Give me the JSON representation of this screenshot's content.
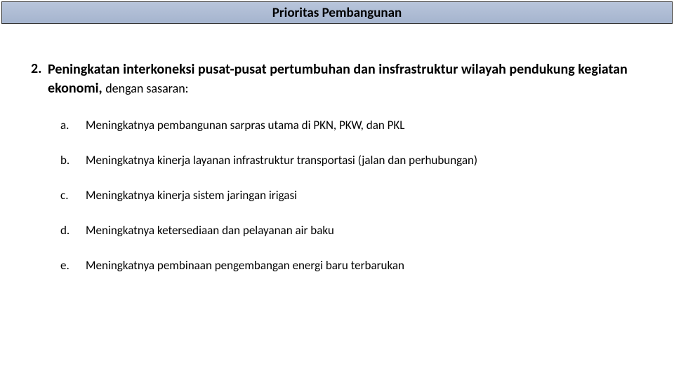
{
  "title": "Prioritas Pembangunan",
  "main": {
    "number": "2.",
    "text_bold": "Peningkatan interkoneksi pusat-pusat pertumbuhan dan insfrastruktur wilayah pendukung kegiatan ekonomi, ",
    "text_normal": "dengan sasaran:"
  },
  "subitems": [
    {
      "letter": "a.",
      "text": "Meningkatnya pembangunan sarpras utama di PKN, PKW, dan PKL"
    },
    {
      "letter": "b.",
      "text": "Meningkatnya kinerja layanan infrastruktur transportasi (jalan dan perhubungan)"
    },
    {
      "letter": "c.",
      "text": "Meningkatnya kinerja sistem jaringan irigasi"
    },
    {
      "letter": "d.",
      "text": "Meningkatnya ketersediaan dan pelayanan air baku"
    },
    {
      "letter": "e.",
      "text": "Meningkatnya pembinaan pengembangan energi baru terbarukan"
    }
  ],
  "colors": {
    "title_bg_top": "#b8c5db",
    "title_bg_bottom": "#a5b4ce",
    "title_border": "#333333",
    "page_bg": "#ffffff",
    "text": "#000000"
  }
}
